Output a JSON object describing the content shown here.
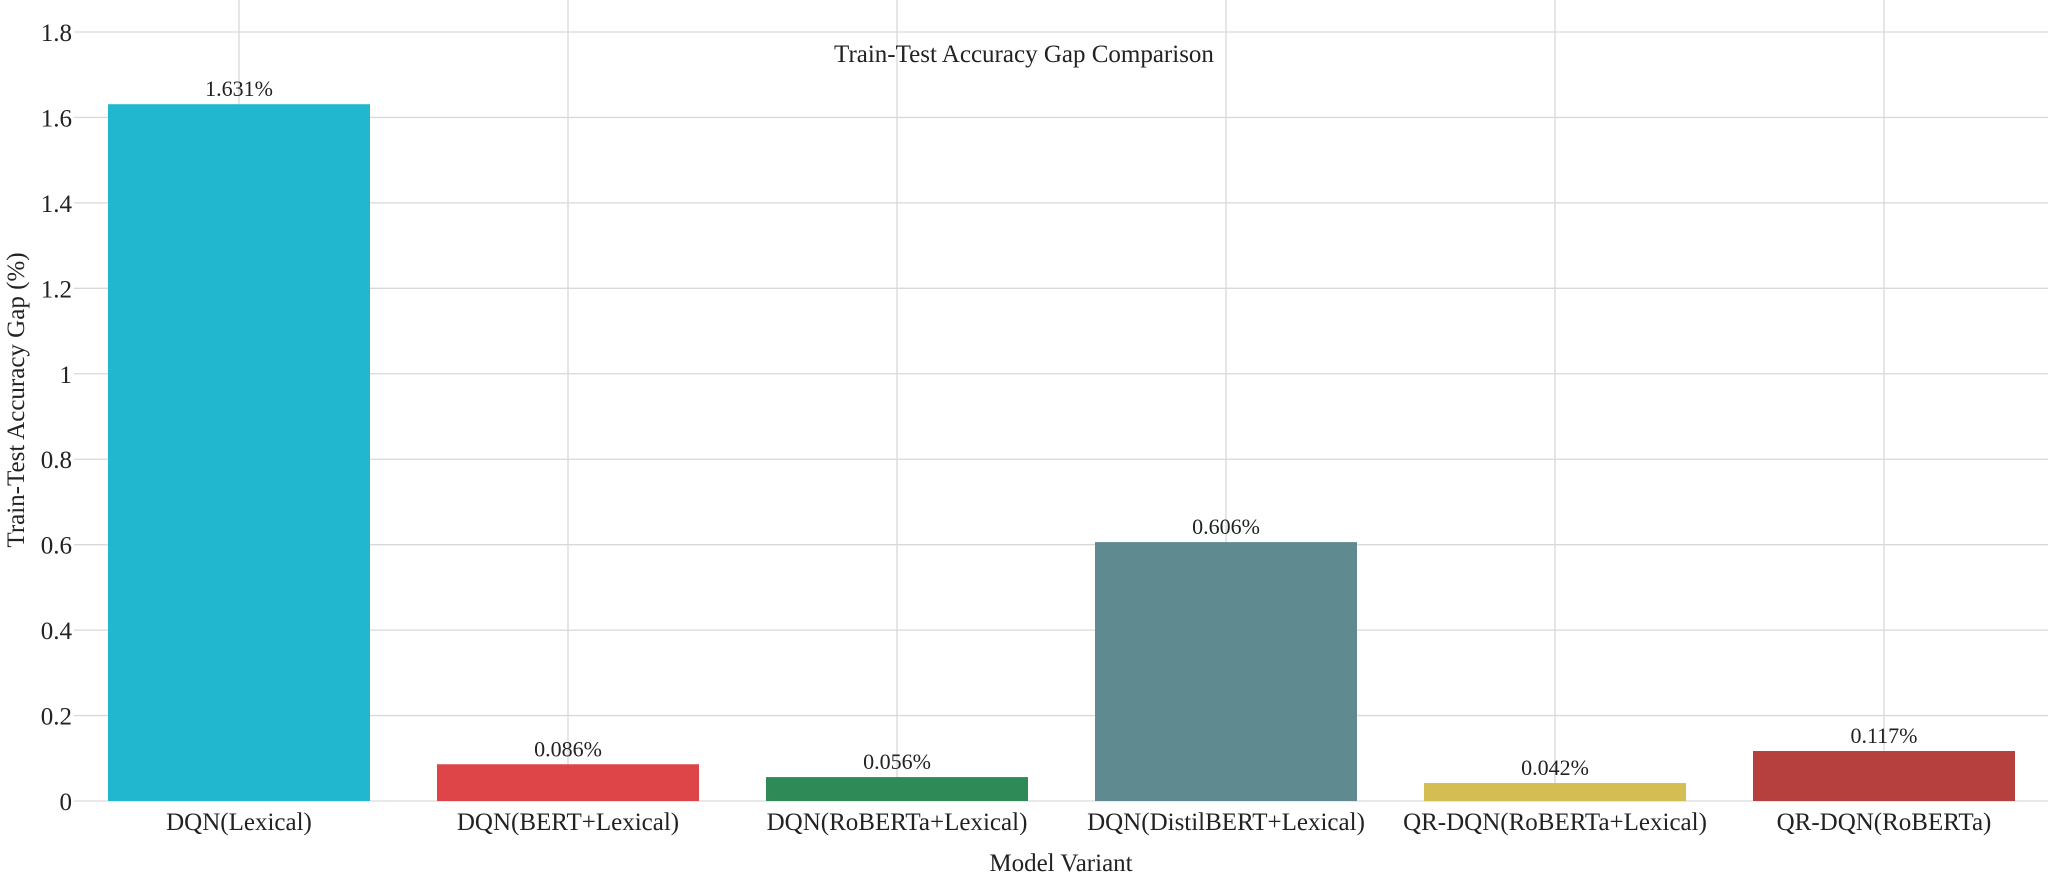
{
  "chart_data": {
    "type": "bar",
    "title": "Train-Test Accuracy Gap Comparison",
    "xlabel": "Model Variant",
    "ylabel": "Train-Test Accuracy Gap (%)",
    "categories": [
      "DQN(Lexical)",
      "DQN(BERT+Lexical)",
      "DQN(RoBERTa+Lexical)",
      "DQN(DistilBERT+Lexical)",
      "QR-DQN(RoBERTa+Lexical)",
      "QR-DQN(RoBERTa)"
    ],
    "values": [
      1.631,
      0.086,
      0.056,
      0.606,
      0.042,
      0.117
    ],
    "data_labels": [
      "1.631%",
      "0.086%",
      "0.056%",
      "0.606%",
      "0.042%",
      "0.117%"
    ],
    "colors": [
      "#21b8cf",
      "#dd4548",
      "#2e8b57",
      "#5f8a8f",
      "#d4bd52",
      "#b5403d"
    ],
    "ylim": [
      0,
      1.8
    ],
    "yticks": [
      0,
      0.2,
      0.4,
      0.6,
      0.8,
      1,
      1.2,
      1.4,
      1.6,
      1.8
    ],
    "ytick_labels": [
      "0",
      "0.2",
      "0.4",
      "0.6",
      "0.8",
      "1",
      "1.2",
      "1.4",
      "1.6",
      "1.8"
    ],
    "grid": true,
    "legend": "none"
  }
}
